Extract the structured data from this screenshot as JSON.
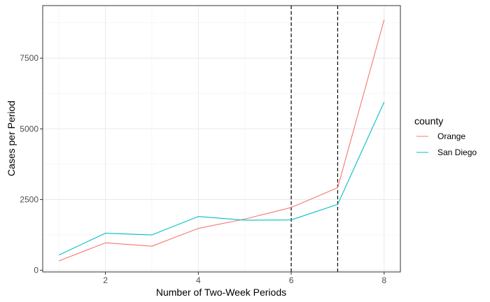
{
  "chart_data": {
    "type": "line",
    "title": "",
    "xlabel": "Number of Two-Week Periods",
    "ylabel": "Cases per Period",
    "xlim": [
      0.65,
      8.35
    ],
    "ylim": [
      -60,
      9360
    ],
    "x_ticks": [
      2,
      4,
      6,
      8
    ],
    "x_tick_labels": [
      "2",
      "4",
      "6",
      "8"
    ],
    "y_ticks": [
      0,
      2500,
      5000,
      7500
    ],
    "y_tick_labels": [
      "0",
      "2500",
      "5000",
      "7500"
    ],
    "grid": true,
    "legend": {
      "title": "county",
      "position": "right"
    },
    "x": [
      1,
      2,
      3,
      4,
      5,
      6,
      7,
      8
    ],
    "series": [
      {
        "name": "Orange",
        "color": "#F8766D",
        "values": [
          330,
          970,
          850,
          1480,
          1810,
          2220,
          2920,
          8860
        ]
      },
      {
        "name": "San Diego",
        "color": "#00BFC4",
        "values": [
          540,
          1310,
          1250,
          1900,
          1770,
          1780,
          2330,
          5950
        ]
      }
    ],
    "vlines": [
      6,
      7
    ]
  }
}
